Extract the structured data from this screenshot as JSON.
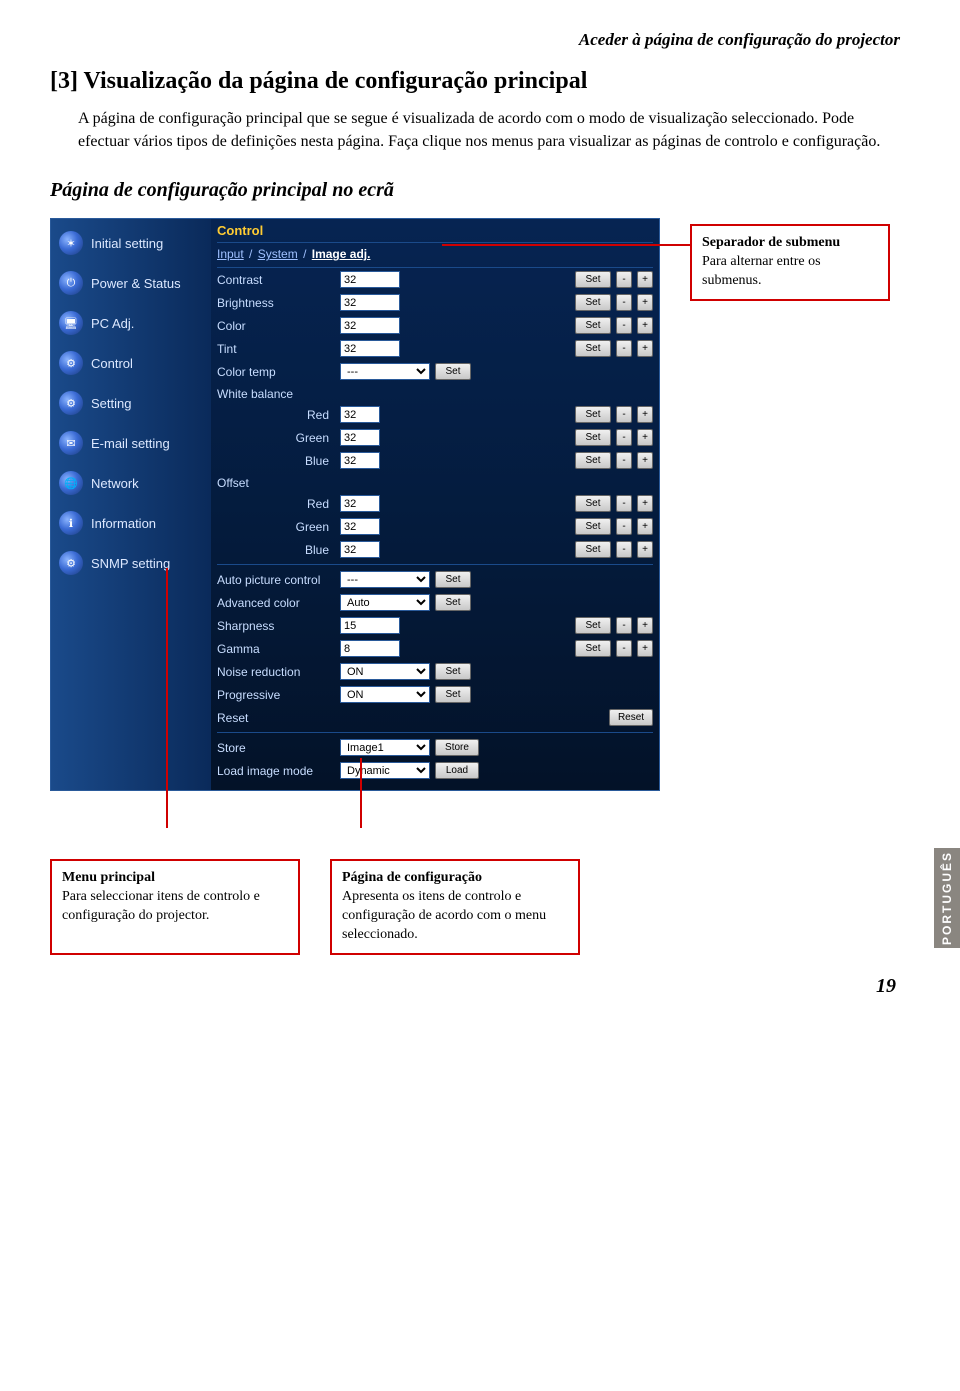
{
  "header": "Aceder à página de configuração do projector",
  "section_title": "[3] Visualização da página de configuração principal",
  "body_text": "A página de configuração principal que se segue é visualizada de acordo com o modo de visualização seleccionado. Pode efectuar vários tipos de definições nesta página. Faça clique nos menus para visualizar as páginas de controlo e configuração.",
  "subsection_title": "Página de configuração principal no ecrã",
  "sidebar": {
    "items": [
      {
        "label": "Initial setting",
        "icon": "✶"
      },
      {
        "label": "Power & Status",
        "icon": "⏻"
      },
      {
        "label": "PC Adj.",
        "icon": "🖥"
      },
      {
        "label": "Control",
        "icon": "⚙"
      },
      {
        "label": "Setting",
        "icon": "⚙"
      },
      {
        "label": "E-mail setting",
        "icon": "✉"
      },
      {
        "label": "Network",
        "icon": "🌐"
      },
      {
        "label": "Information",
        "icon": "ℹ"
      },
      {
        "label": "SNMP setting",
        "icon": "⚙"
      }
    ]
  },
  "panel": {
    "title": "Control",
    "tabs": {
      "t1": "Input",
      "t2": "System",
      "t3": "Image adj.",
      "sep": " / "
    },
    "btn_set": "Set",
    "btn_minus": "-",
    "btn_plus": "+",
    "btn_reset": "Reset",
    "btn_store": "Store",
    "btn_load": "Load",
    "rows_numeric": [
      {
        "label": "Contrast",
        "val": "32"
      },
      {
        "label": "Brightness",
        "val": "32"
      },
      {
        "label": "Color",
        "val": "32"
      },
      {
        "label": "Tint",
        "val": "32"
      }
    ],
    "color_temp": {
      "label": "Color temp",
      "val": "---"
    },
    "white_balance": {
      "label": "White balance",
      "rgb": [
        {
          "label": "Red",
          "val": "32"
        },
        {
          "label": "Green",
          "val": "32"
        },
        {
          "label": "Blue",
          "val": "32"
        }
      ]
    },
    "offset": {
      "label": "Offset",
      "rgb": [
        {
          "label": "Red",
          "val": "32"
        },
        {
          "label": "Green",
          "val": "32"
        },
        {
          "label": "Blue",
          "val": "32"
        }
      ]
    },
    "auto_pic": {
      "label": "Auto picture control",
      "val": "---"
    },
    "adv_color": {
      "label": "Advanced color",
      "val": "Auto"
    },
    "sharpness": {
      "label": "Sharpness",
      "val": "15"
    },
    "gamma": {
      "label": "Gamma",
      "val": "8"
    },
    "noise": {
      "label": "Noise reduction",
      "val": "ON"
    },
    "progressive": {
      "label": "Progressive",
      "val": "ON"
    },
    "reset": {
      "label": "Reset"
    },
    "store": {
      "label": "Store",
      "val": "Image1"
    },
    "load": {
      "label": "Load image mode",
      "val": "Dynamic"
    }
  },
  "callout_submenu": {
    "title": "Separador de submenu",
    "text": "Para alternar entre os submenus."
  },
  "callout_main": {
    "title": "Menu principal",
    "text": "Para seleccionar itens de controlo e configuração do projector."
  },
  "callout_config": {
    "title": "Página de configuração",
    "text": "Apresenta os itens de controlo e configuração de acordo com o menu seleccionado."
  },
  "lang_tab": "PORTUGUÊS",
  "pagenum": "19",
  "colors": {
    "red": "#d00000"
  }
}
